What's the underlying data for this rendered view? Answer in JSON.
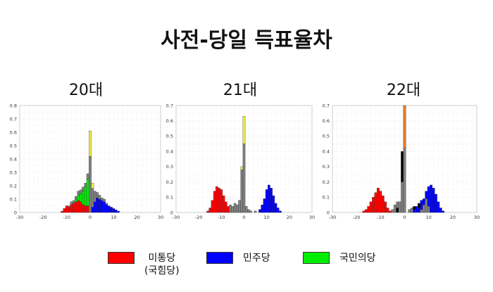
{
  "title": "사전-당일 득표율차",
  "colors": {
    "red": "#ff0000",
    "blue": "#0000ff",
    "green": "#00ee00",
    "gray": "#808080",
    "yellow": "#eeee44",
    "orange": "#f07820",
    "black": "#000000"
  },
  "legend": [
    {
      "label": "미통당",
      "sublabel": "(국힘당)",
      "color": "#ff0000"
    },
    {
      "label": "민주당",
      "sublabel": "",
      "color": "#0000ff"
    },
    {
      "label": "국민의당",
      "sublabel": "",
      "color": "#00ee00"
    }
  ],
  "chart_data": [
    {
      "type": "bar",
      "title": "20대",
      "xlim": [
        -30,
        30
      ],
      "ylim": [
        0,
        0.8
      ],
      "xticks": [
        "-30",
        "-20",
        "-10",
        "0",
        "10",
        "20",
        "30"
      ],
      "yticks": [
        "0",
        "0.1",
        "0.2",
        "0.3",
        "0.4",
        "0.5",
        "0.6",
        "0.7",
        "0.8"
      ],
      "bin_width": 1,
      "bins": [
        {
          "x": -12,
          "layers": [
            [
              "red",
              0.01
            ]
          ]
        },
        {
          "x": -11,
          "layers": [
            [
              "red",
              0.03
            ]
          ]
        },
        {
          "x": -10,
          "layers": [
            [
              "red",
              0.05
            ]
          ]
        },
        {
          "x": -9,
          "layers": [
            [
              "red",
              0.04
            ],
            [
              "gray",
              0.01
            ]
          ]
        },
        {
          "x": -8,
          "layers": [
            [
              "red",
              0.06
            ],
            [
              "gray",
              0.02
            ]
          ]
        },
        {
          "x": -7,
          "layers": [
            [
              "red",
              0.07
            ],
            [
              "gray",
              0.02
            ]
          ]
        },
        {
          "x": -6,
          "layers": [
            [
              "red",
              0.08
            ],
            [
              "green",
              0.02
            ],
            [
              "gray",
              0.02
            ]
          ]
        },
        {
          "x": -5,
          "layers": [
            [
              "red",
              0.09
            ],
            [
              "green",
              0.04
            ],
            [
              "gray",
              0.03
            ]
          ]
        },
        {
          "x": -4,
          "layers": [
            [
              "red",
              0.08
            ],
            [
              "green",
              0.06
            ],
            [
              "gray",
              0.03
            ]
          ]
        },
        {
          "x": -3,
          "layers": [
            [
              "red",
              0.06
            ],
            [
              "green",
              0.1
            ],
            [
              "gray",
              0.03
            ]
          ]
        },
        {
          "x": -2,
          "layers": [
            [
              "red",
              0.05
            ],
            [
              "green",
              0.14
            ],
            [
              "gray",
              0.03
            ]
          ]
        },
        {
          "x": -1,
          "layers": [
            [
              "red",
              0.05
            ],
            [
              "green",
              0.2
            ],
            [
              "gray",
              0.04
            ]
          ]
        },
        {
          "x": 0,
          "layers": [
            [
              "gray",
              0.42
            ],
            [
              "yellow",
              0.19
            ]
          ]
        },
        {
          "x": 1,
          "layers": [
            [
              "blue",
              0.04
            ],
            [
              "gray",
              0.14
            ],
            [
              "yellow",
              0.04
            ]
          ]
        },
        {
          "x": 2,
          "layers": [
            [
              "blue",
              0.08
            ],
            [
              "gray",
              0.08
            ]
          ]
        },
        {
          "x": 3,
          "layers": [
            [
              "blue",
              0.11
            ],
            [
              "gray",
              0.04
            ]
          ]
        },
        {
          "x": 4,
          "layers": [
            [
              "blue",
              0.1
            ],
            [
              "gray",
              0.03
            ]
          ]
        },
        {
          "x": 5,
          "layers": [
            [
              "blue",
              0.09
            ],
            [
              "gray",
              0.02
            ]
          ]
        },
        {
          "x": 6,
          "layers": [
            [
              "blue",
              0.08
            ],
            [
              "gray",
              0.02
            ]
          ]
        },
        {
          "x": 7,
          "layers": [
            [
              "blue",
              0.06
            ],
            [
              "gray",
              0.01
            ]
          ]
        },
        {
          "x": 8,
          "layers": [
            [
              "blue",
              0.05
            ]
          ]
        },
        {
          "x": 9,
          "layers": [
            [
              "blue",
              0.04
            ]
          ]
        },
        {
          "x": 10,
          "layers": [
            [
              "blue",
              0.03
            ]
          ]
        },
        {
          "x": 11,
          "layers": [
            [
              "blue",
              0.02
            ]
          ]
        },
        {
          "x": 12,
          "layers": [
            [
              "blue",
              0.01
            ]
          ]
        }
      ]
    },
    {
      "type": "bar",
      "title": "21대",
      "xlim": [
        -30,
        30
      ],
      "ylim": [
        0,
        0.7
      ],
      "xticks": [
        "-30",
        "-20",
        "-10",
        "0",
        "10",
        "20",
        "30"
      ],
      "yticks": [
        "0",
        "0.1",
        "0.2",
        "0.3",
        "0.4",
        "0.5",
        "0.6",
        "0.7"
      ],
      "bin_width": 1,
      "bins": [
        {
          "x": -16,
          "layers": [
            [
              "red",
              0.01
            ]
          ]
        },
        {
          "x": -15,
          "layers": [
            [
              "red",
              0.03
            ]
          ]
        },
        {
          "x": -14,
          "layers": [
            [
              "red",
              0.08
            ]
          ]
        },
        {
          "x": -13,
          "layers": [
            [
              "red",
              0.14
            ]
          ]
        },
        {
          "x": -12,
          "layers": [
            [
              "red",
              0.17
            ]
          ]
        },
        {
          "x": -11,
          "layers": [
            [
              "red",
              0.16
            ]
          ]
        },
        {
          "x": -10,
          "layers": [
            [
              "red",
              0.15
            ]
          ]
        },
        {
          "x": -9,
          "layers": [
            [
              "red",
              0.11
            ]
          ]
        },
        {
          "x": -8,
          "layers": [
            [
              "red",
              0.07
            ]
          ]
        },
        {
          "x": -7,
          "layers": [
            [
              "red",
              0.04
            ]
          ]
        },
        {
          "x": -6,
          "layers": [
            [
              "gray",
              0.05
            ]
          ]
        },
        {
          "x": -5,
          "layers": [
            [
              "gray",
              0.04
            ]
          ]
        },
        {
          "x": -4,
          "layers": [
            [
              "gray",
              0.06
            ]
          ]
        },
        {
          "x": -3,
          "layers": [
            [
              "gray",
              0.05
            ]
          ]
        },
        {
          "x": -2,
          "layers": [
            [
              "gray",
              0.08
            ]
          ]
        },
        {
          "x": -1,
          "layers": [
            [
              "gray",
              0.28
            ],
            [
              "yellow",
              0.02
            ]
          ]
        },
        {
          "x": 0,
          "layers": [
            [
              "gray",
              0.45
            ],
            [
              "yellow",
              0.18
            ]
          ]
        },
        {
          "x": 1,
          "layers": [
            [
              "gray",
              0.04
            ]
          ]
        },
        {
          "x": 2,
          "layers": [
            [
              "gray",
              0.02
            ]
          ]
        },
        {
          "x": 3,
          "layers": [
            [
              "gray",
              0.01
            ]
          ]
        },
        {
          "x": 5,
          "layers": [
            [
              "gray",
              0.01
            ]
          ]
        },
        {
          "x": 7,
          "layers": [
            [
              "blue",
              0.02
            ]
          ]
        },
        {
          "x": 8,
          "layers": [
            [
              "blue",
              0.05
            ]
          ]
        },
        {
          "x": 9,
          "layers": [
            [
              "blue",
              0.09
            ]
          ]
        },
        {
          "x": 10,
          "layers": [
            [
              "blue",
              0.15
            ]
          ]
        },
        {
          "x": 11,
          "layers": [
            [
              "blue",
              0.18
            ]
          ]
        },
        {
          "x": 12,
          "layers": [
            [
              "blue",
              0.16
            ]
          ]
        },
        {
          "x": 13,
          "layers": [
            [
              "blue",
              0.11
            ]
          ]
        },
        {
          "x": 14,
          "layers": [
            [
              "blue",
              0.06
            ]
          ]
        },
        {
          "x": 15,
          "layers": [
            [
              "blue",
              0.03
            ]
          ]
        },
        {
          "x": 16,
          "layers": [
            [
              "blue",
              0.01
            ]
          ]
        }
      ]
    },
    {
      "type": "bar",
      "title": "22대",
      "xlim": [
        -30,
        30
      ],
      "ylim": [
        0,
        0.7
      ],
      "xticks": [
        "-30",
        "-20",
        "-10",
        "0",
        "10",
        "20",
        "30"
      ],
      "yticks": [
        "0",
        "0.1",
        "0.2",
        "0.3",
        "0.4",
        "0.5",
        "0.6",
        "0.7"
      ],
      "bin_width": 1,
      "bins": [
        {
          "x": -17,
          "layers": [
            [
              "red",
              0.01
            ]
          ]
        },
        {
          "x": -16,
          "layers": [
            [
              "red",
              0.02
            ]
          ]
        },
        {
          "x": -15,
          "layers": [
            [
              "red",
              0.04
            ]
          ]
        },
        {
          "x": -14,
          "layers": [
            [
              "red",
              0.07
            ]
          ]
        },
        {
          "x": -13,
          "layers": [
            [
              "red",
              0.1
            ]
          ]
        },
        {
          "x": -12,
          "layers": [
            [
              "red",
              0.13
            ]
          ]
        },
        {
          "x": -11,
          "layers": [
            [
              "red",
              0.16
            ]
          ]
        },
        {
          "x": -10,
          "layers": [
            [
              "red",
              0.14
            ]
          ]
        },
        {
          "x": -9,
          "layers": [
            [
              "red",
              0.11
            ]
          ]
        },
        {
          "x": -8,
          "layers": [
            [
              "red",
              0.07
            ]
          ]
        },
        {
          "x": -7,
          "layers": [
            [
              "red",
              0.03
            ]
          ]
        },
        {
          "x": -6,
          "layers": [
            [
              "red",
              0.01
            ]
          ]
        },
        {
          "x": -5,
          "layers": [
            [
              "gray",
              0.02
            ]
          ]
        },
        {
          "x": -4,
          "layers": [
            [
              "gray",
              0.05
            ]
          ]
        },
        {
          "x": -3,
          "layers": [
            [
              "black",
              0.03
            ],
            [
              "gray",
              0.04
            ]
          ]
        },
        {
          "x": -2,
          "layers": [
            [
              "gray",
              0.07
            ]
          ]
        },
        {
          "x": -1,
          "layers": [
            [
              "gray",
              0.2
            ],
            [
              "black",
              0.2
            ]
          ]
        },
        {
          "x": 0,
          "layers": [
            [
              "gray",
              0.42
            ],
            [
              "orange",
              0.28
            ]
          ]
        },
        {
          "x": 2,
          "layers": [
            [
              "gray",
              0.02
            ]
          ]
        },
        {
          "x": 3,
          "layers": [
            [
              "gray",
              0.03
            ]
          ]
        },
        {
          "x": 4,
          "layers": [
            [
              "blue",
              0.02
            ],
            [
              "black",
              0.02
            ]
          ]
        },
        {
          "x": 5,
          "layers": [
            [
              "blue",
              0.04
            ]
          ]
        },
        {
          "x": 6,
          "layers": [
            [
              "blue",
              0.03
            ],
            [
              "black",
              0.03
            ]
          ]
        },
        {
          "x": 7,
          "layers": [
            [
              "gray",
              0.02
            ],
            [
              "blue",
              0.06
            ]
          ]
        },
        {
          "x": 8,
          "layers": [
            [
              "gray",
              0.05
            ],
            [
              "blue",
              0.04
            ]
          ]
        },
        {
          "x": 9,
          "layers": [
            [
              "gray",
              0.09
            ],
            [
              "blue",
              0.05
            ]
          ]
        },
        {
          "x": 10,
          "layers": [
            [
              "gray",
              0.04
            ],
            [
              "blue",
              0.13
            ]
          ]
        },
        {
          "x": 11,
          "layers": [
            [
              "blue",
              0.18
            ]
          ]
        },
        {
          "x": 12,
          "layers": [
            [
              "blue",
              0.16
            ]
          ]
        },
        {
          "x": 13,
          "layers": [
            [
              "blue",
              0.12
            ]
          ]
        },
        {
          "x": 14,
          "layers": [
            [
              "blue",
              0.07
            ]
          ]
        },
        {
          "x": 15,
          "layers": [
            [
              "blue",
              0.03
            ]
          ]
        },
        {
          "x": 16,
          "layers": [
            [
              "blue",
              0.01
            ]
          ]
        }
      ]
    }
  ]
}
